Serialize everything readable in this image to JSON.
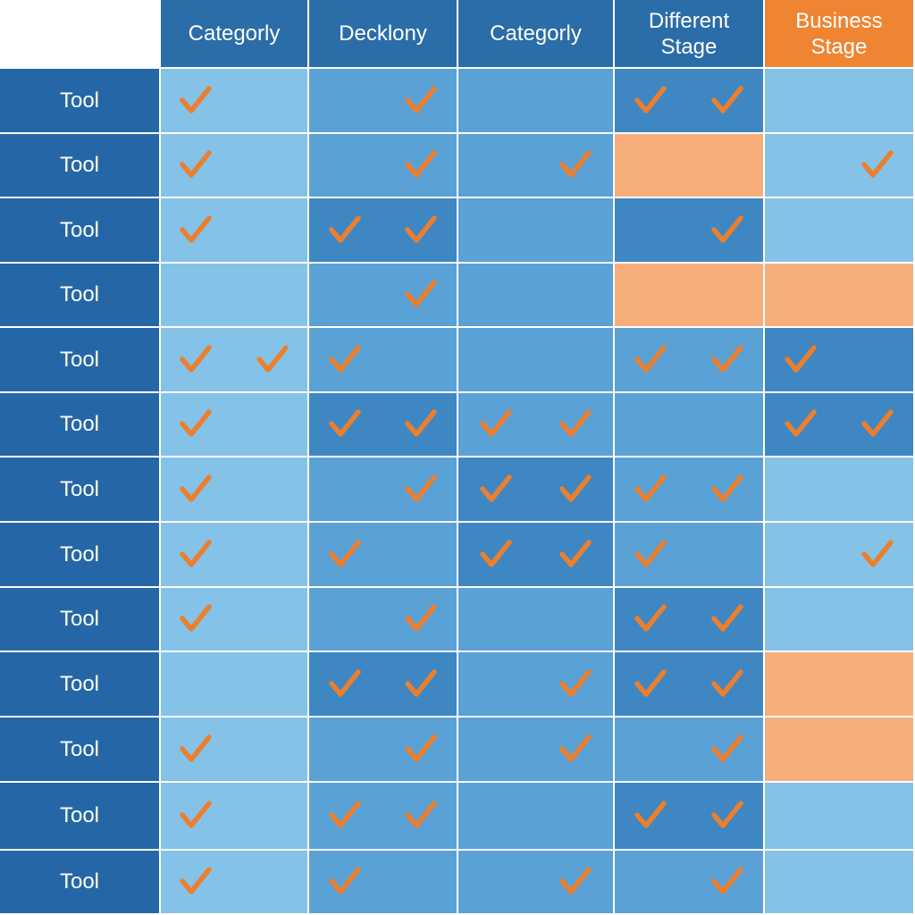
{
  "colors": {
    "header_blue": "#2b6da8",
    "header_orange": "#ef8533",
    "row_label_bg": "#2567a6",
    "light": "#85c2e8",
    "mid": "#5aa1d6",
    "dark": "#3e87c3",
    "peach": "#f7ae7b",
    "check": "#ec7f2d",
    "divider": "#ffffff"
  },
  "columns": [
    {
      "label": "Categorly",
      "accent": "blue"
    },
    {
      "label": "Decklony",
      "accent": "blue"
    },
    {
      "label": "Categorly",
      "accent": "blue"
    },
    {
      "label": "Different\nStage",
      "accent": "blue"
    },
    {
      "label": "Business\nStage",
      "accent": "orange"
    }
  ],
  "rows": [
    {
      "label": "Tool",
      "cells": [
        {
          "tone": "light",
          "checks": [
            "left"
          ]
        },
        {
          "tone": "mid",
          "checks": [
            "right"
          ]
        },
        {
          "tone": "mid",
          "checks": []
        },
        {
          "tone": "dark",
          "checks": [
            "left",
            "right"
          ]
        },
        {
          "tone": "light",
          "checks": []
        }
      ]
    },
    {
      "label": "Tool",
      "cells": [
        {
          "tone": "light",
          "checks": [
            "left"
          ]
        },
        {
          "tone": "mid",
          "checks": [
            "right"
          ]
        },
        {
          "tone": "mid",
          "checks": [
            "right"
          ]
        },
        {
          "tone": "peach",
          "checks": []
        },
        {
          "tone": "light",
          "checks": [
            "right"
          ]
        }
      ]
    },
    {
      "label": "Tool",
      "cells": [
        {
          "tone": "light",
          "checks": [
            "left"
          ]
        },
        {
          "tone": "dark",
          "checks": [
            "left",
            "right"
          ]
        },
        {
          "tone": "mid",
          "checks": []
        },
        {
          "tone": "dark",
          "checks": [
            "right"
          ]
        },
        {
          "tone": "light",
          "checks": []
        }
      ]
    },
    {
      "label": "Tool",
      "cells": [
        {
          "tone": "light",
          "checks": []
        },
        {
          "tone": "mid",
          "checks": [
            "right"
          ]
        },
        {
          "tone": "mid",
          "checks": []
        },
        {
          "tone": "peach",
          "checks": []
        },
        {
          "tone": "peach",
          "checks": []
        }
      ]
    },
    {
      "label": "Tool",
      "cells": [
        {
          "tone": "light",
          "checks": [
            "left",
            "right"
          ]
        },
        {
          "tone": "mid",
          "checks": [
            "left"
          ]
        },
        {
          "tone": "mid",
          "checks": []
        },
        {
          "tone": "mid",
          "checks": [
            "left",
            "right"
          ]
        },
        {
          "tone": "dark",
          "checks": [
            "left"
          ]
        }
      ]
    },
    {
      "label": "Tool",
      "cells": [
        {
          "tone": "light",
          "checks": [
            "left"
          ]
        },
        {
          "tone": "dark",
          "checks": [
            "left",
            "right"
          ]
        },
        {
          "tone": "mid",
          "checks": [
            "left",
            "right"
          ]
        },
        {
          "tone": "mid",
          "checks": []
        },
        {
          "tone": "dark",
          "checks": [
            "left",
            "right"
          ]
        }
      ]
    },
    {
      "label": "Tool",
      "cells": [
        {
          "tone": "light",
          "checks": [
            "left"
          ]
        },
        {
          "tone": "mid",
          "checks": [
            "right"
          ]
        },
        {
          "tone": "dark",
          "checks": [
            "left",
            "right"
          ]
        },
        {
          "tone": "mid",
          "checks": [
            "left",
            "right"
          ]
        },
        {
          "tone": "light",
          "checks": []
        }
      ]
    },
    {
      "label": "Tool",
      "cells": [
        {
          "tone": "light",
          "checks": [
            "left"
          ]
        },
        {
          "tone": "mid",
          "checks": [
            "left"
          ]
        },
        {
          "tone": "dark",
          "checks": [
            "left",
            "right"
          ]
        },
        {
          "tone": "mid",
          "checks": [
            "left"
          ]
        },
        {
          "tone": "light",
          "checks": [
            "right"
          ]
        }
      ]
    },
    {
      "label": "Tool",
      "cells": [
        {
          "tone": "light",
          "checks": [
            "left"
          ]
        },
        {
          "tone": "mid",
          "checks": [
            "right"
          ]
        },
        {
          "tone": "mid",
          "checks": []
        },
        {
          "tone": "dark",
          "checks": [
            "left",
            "right"
          ]
        },
        {
          "tone": "light",
          "checks": []
        }
      ]
    },
    {
      "label": "Tool",
      "cells": [
        {
          "tone": "light",
          "checks": []
        },
        {
          "tone": "dark",
          "checks": [
            "left",
            "right"
          ]
        },
        {
          "tone": "mid",
          "checks": [
            "right"
          ]
        },
        {
          "tone": "dark",
          "checks": [
            "left",
            "right"
          ]
        },
        {
          "tone": "peach",
          "checks": []
        }
      ]
    },
    {
      "label": "Tool",
      "cells": [
        {
          "tone": "light",
          "checks": [
            "left"
          ]
        },
        {
          "tone": "mid",
          "checks": [
            "right"
          ]
        },
        {
          "tone": "mid",
          "checks": [
            "right"
          ]
        },
        {
          "tone": "mid",
          "checks": [
            "right"
          ]
        },
        {
          "tone": "peach",
          "checks": []
        }
      ]
    },
    {
      "label": "Tool",
      "cells": [
        {
          "tone": "light",
          "checks": [
            "left"
          ]
        },
        {
          "tone": "mid",
          "checks": [
            "left",
            "right"
          ]
        },
        {
          "tone": "mid",
          "checks": []
        },
        {
          "tone": "dark",
          "checks": [
            "left",
            "right"
          ]
        },
        {
          "tone": "light",
          "checks": []
        }
      ]
    },
    {
      "label": "Tool",
      "cells": [
        {
          "tone": "light",
          "checks": [
            "left"
          ]
        },
        {
          "tone": "mid",
          "checks": [
            "left"
          ]
        },
        {
          "tone": "mid",
          "checks": [
            "right"
          ]
        },
        {
          "tone": "mid",
          "checks": [
            "right"
          ]
        },
        {
          "tone": "light",
          "checks": []
        }
      ]
    }
  ]
}
